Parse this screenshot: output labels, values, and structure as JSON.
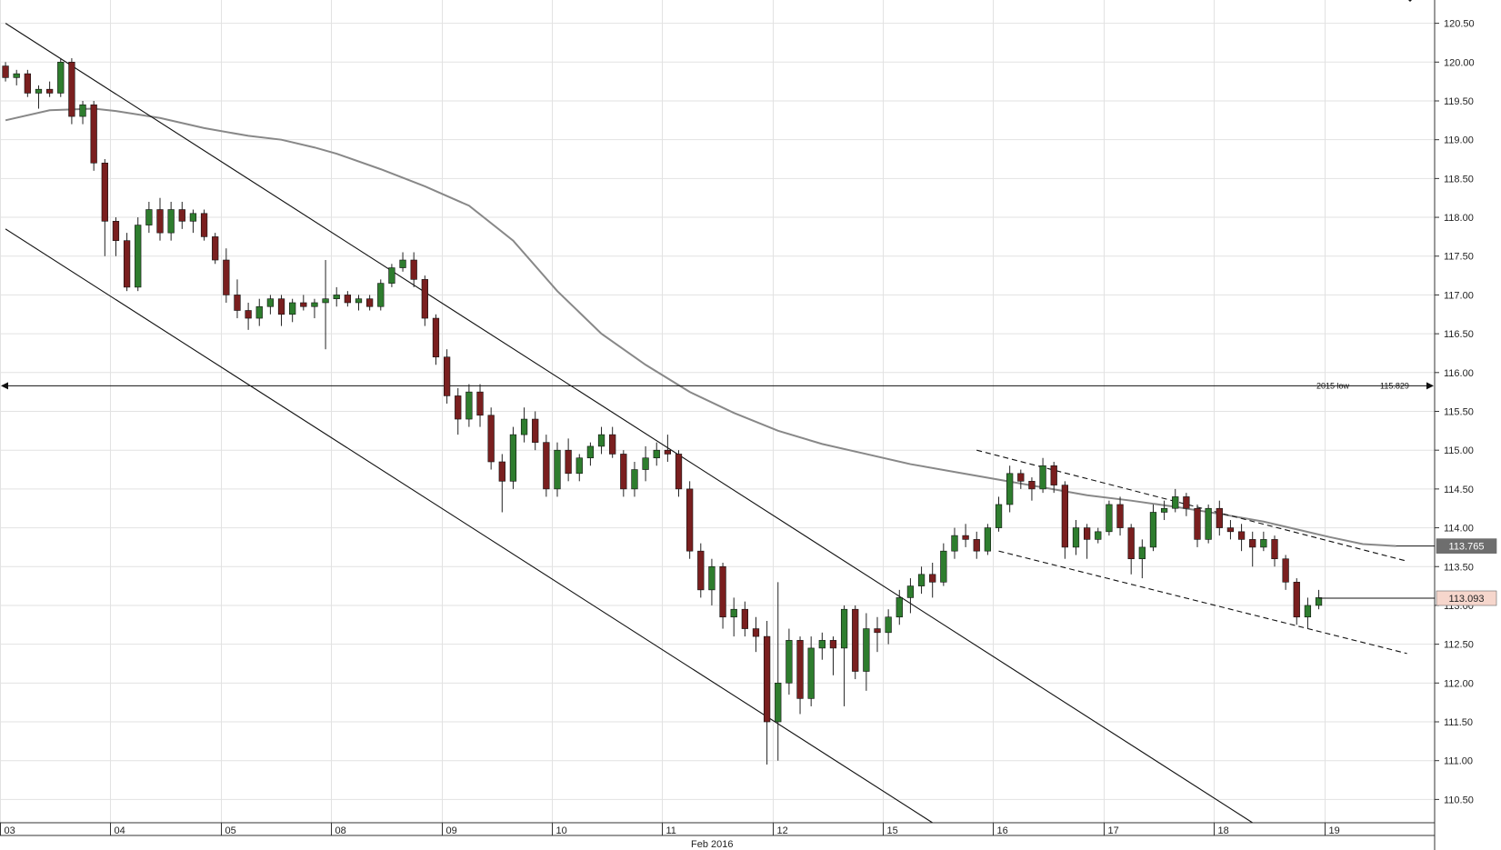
{
  "chart_data": {
    "type": "candlestick",
    "title": "",
    "xlabel": "Feb 2016",
    "ylabel": "",
    "ylim": [
      110.2,
      120.8
    ],
    "y_ticks": [
      "110.50",
      "111.00",
      "111.50",
      "112.00",
      "112.50",
      "113.00",
      "113.50",
      "114.00",
      "114.50",
      "115.00",
      "115.50",
      "116.00",
      "116.50",
      "117.00",
      "117.50",
      "118.00",
      "118.50",
      "119.00",
      "119.50",
      "120.00",
      "120.50"
    ],
    "x_day_labels": [
      "03",
      "04",
      "05",
      "08",
      "09",
      "10",
      "11",
      "12",
      "15",
      "16",
      "17",
      "18",
      "19"
    ],
    "x_month_label": "Feb 2016",
    "grid": true,
    "colors": {
      "up": "#2e7d2e",
      "down": "#7a1f1f",
      "wick": "#222222",
      "ma": "#888888",
      "line": "#111111"
    },
    "moving_average": [
      [
        0,
        119.25
      ],
      [
        4,
        119.38
      ],
      [
        8,
        119.4
      ],
      [
        10,
        119.37
      ],
      [
        14,
        119.28
      ],
      [
        18,
        119.15
      ],
      [
        22,
        119.05
      ],
      [
        25,
        119.0
      ],
      [
        28,
        118.9
      ],
      [
        30,
        118.82
      ],
      [
        34,
        118.62
      ],
      [
        38,
        118.4
      ],
      [
        42,
        118.15
      ],
      [
        46,
        117.7
      ],
      [
        50,
        117.05
      ],
      [
        54,
        116.5
      ],
      [
        58,
        116.1
      ],
      [
        62,
        115.75
      ],
      [
        66,
        115.48
      ],
      [
        70,
        115.25
      ],
      [
        74,
        115.08
      ],
      [
        78,
        114.95
      ],
      [
        82,
        114.82
      ],
      [
        86,
        114.72
      ],
      [
        90,
        114.62
      ],
      [
        94,
        114.52
      ],
      [
        98,
        114.42
      ],
      [
        102,
        114.35
      ],
      [
        106,
        114.27
      ],
      [
        110,
        114.18
      ],
      [
        114,
        114.08
      ],
      [
        117,
        113.98
      ],
      [
        120,
        113.88
      ],
      [
        123,
        113.79
      ],
      [
        126,
        113.765
      ]
    ],
    "level_2015_low": {
      "label": "2015 low",
      "value": "115.829",
      "y": 115.829
    },
    "channel_upper": [
      [
        0,
        120.5
      ],
      [
        113,
        110.2
      ]
    ],
    "channel_lower": [
      [
        0,
        117.85
      ],
      [
        84,
        110.2
      ]
    ],
    "trend_dashed_upper": [
      [
        88,
        115.0
      ],
      [
        127,
        113.57
      ]
    ],
    "trend_dashed_lower": [
      [
        90,
        113.7
      ],
      [
        127,
        112.38
      ]
    ],
    "candles": [
      [
        119.95,
        120.0,
        119.75,
        119.8
      ],
      [
        119.8,
        119.9,
        119.7,
        119.85
      ],
      [
        119.85,
        119.9,
        119.55,
        119.6
      ],
      [
        119.6,
        119.7,
        119.4,
        119.65
      ],
      [
        119.65,
        119.75,
        119.55,
        119.6
      ],
      [
        119.6,
        120.05,
        119.55,
        120.0
      ],
      [
        120.0,
        120.05,
        119.2,
        119.3
      ],
      [
        119.3,
        119.5,
        119.2,
        119.45
      ],
      [
        119.45,
        119.5,
        118.6,
        118.7
      ],
      [
        118.7,
        118.75,
        117.5,
        117.95
      ],
      [
        117.95,
        118.0,
        117.5,
        117.7
      ],
      [
        117.7,
        117.8,
        117.05,
        117.1
      ],
      [
        117.1,
        118.0,
        117.05,
        117.9
      ],
      [
        117.9,
        118.2,
        117.8,
        118.1
      ],
      [
        118.1,
        118.25,
        117.7,
        117.8
      ],
      [
        117.8,
        118.2,
        117.7,
        118.1
      ],
      [
        118.1,
        118.2,
        117.85,
        117.95
      ],
      [
        117.95,
        118.1,
        117.8,
        118.05
      ],
      [
        118.05,
        118.1,
        117.7,
        117.75
      ],
      [
        117.75,
        117.8,
        117.4,
        117.45
      ],
      [
        117.45,
        117.6,
        116.9,
        117.0
      ],
      [
        117.0,
        117.2,
        116.7,
        116.8
      ],
      [
        116.8,
        116.9,
        116.55,
        116.7
      ],
      [
        116.7,
        116.95,
        116.6,
        116.85
      ],
      [
        116.85,
        117.0,
        116.75,
        116.95
      ],
      [
        116.95,
        117.0,
        116.6,
        116.75
      ],
      [
        116.75,
        116.95,
        116.65,
        116.9
      ],
      [
        116.9,
        117.0,
        116.8,
        116.85
      ],
      [
        116.85,
        116.95,
        116.7,
        116.9
      ],
      [
        116.9,
        117.45,
        116.3,
        116.95
      ],
      [
        116.95,
        117.1,
        116.85,
        117.0
      ],
      [
        117.0,
        117.05,
        116.85,
        116.9
      ],
      [
        116.9,
        117.0,
        116.8,
        116.95
      ],
      [
        116.95,
        117.0,
        116.8,
        116.85
      ],
      [
        116.85,
        117.2,
        116.8,
        117.15
      ],
      [
        117.15,
        117.4,
        117.1,
        117.35
      ],
      [
        117.35,
        117.55,
        117.3,
        117.45
      ],
      [
        117.45,
        117.55,
        117.1,
        117.2
      ],
      [
        117.2,
        117.25,
        116.6,
        116.7
      ],
      [
        116.7,
        116.75,
        116.1,
        116.2
      ],
      [
        116.2,
        116.3,
        115.6,
        115.7
      ],
      [
        115.7,
        115.8,
        115.2,
        115.4
      ],
      [
        115.4,
        115.85,
        115.3,
        115.75
      ],
      [
        115.75,
        115.85,
        115.3,
        115.45
      ],
      [
        115.45,
        115.55,
        114.75,
        114.85
      ],
      [
        114.85,
        114.95,
        114.2,
        114.6
      ],
      [
        114.6,
        115.3,
        114.5,
        115.2
      ],
      [
        115.2,
        115.55,
        115.1,
        115.4
      ],
      [
        115.4,
        115.5,
        115.0,
        115.1
      ],
      [
        115.1,
        115.2,
        114.4,
        114.5
      ],
      [
        114.5,
        115.1,
        114.4,
        115.0
      ],
      [
        115.0,
        115.15,
        114.6,
        114.7
      ],
      [
        114.7,
        114.95,
        114.6,
        114.9
      ],
      [
        114.9,
        115.1,
        114.8,
        115.05
      ],
      [
        115.05,
        115.3,
        114.95,
        115.2
      ],
      [
        115.2,
        115.3,
        114.9,
        114.95
      ],
      [
        114.95,
        115.0,
        114.4,
        114.5
      ],
      [
        114.5,
        114.85,
        114.4,
        114.75
      ],
      [
        114.75,
        115.05,
        114.6,
        114.9
      ],
      [
        114.9,
        115.1,
        114.8,
        115.0
      ],
      [
        115.0,
        115.2,
        114.85,
        114.95
      ],
      [
        114.95,
        115.0,
        114.4,
        114.5
      ],
      [
        114.5,
        114.6,
        113.6,
        113.7
      ],
      [
        113.7,
        113.8,
        113.1,
        113.2
      ],
      [
        113.2,
        113.6,
        113.0,
        113.5
      ],
      [
        113.5,
        113.55,
        112.7,
        112.85
      ],
      [
        112.85,
        113.1,
        112.6,
        112.95
      ],
      [
        112.95,
        113.05,
        112.6,
        112.7
      ],
      [
        112.7,
        112.85,
        112.4,
        112.6
      ],
      [
        112.6,
        112.8,
        110.95,
        111.5
      ],
      [
        111.5,
        113.3,
        111.0,
        112.0
      ],
      [
        112.0,
        112.7,
        111.85,
        112.55
      ],
      [
        112.55,
        112.6,
        111.6,
        111.8
      ],
      [
        111.8,
        112.6,
        111.7,
        112.45
      ],
      [
        112.45,
        112.65,
        112.3,
        112.55
      ],
      [
        112.55,
        112.6,
        112.1,
        112.45
      ],
      [
        112.45,
        113.0,
        111.7,
        112.95
      ],
      [
        112.95,
        113.0,
        112.05,
        112.15
      ],
      [
        112.15,
        112.9,
        111.9,
        112.7
      ],
      [
        112.7,
        112.85,
        112.4,
        112.65
      ],
      [
        112.65,
        112.95,
        112.5,
        112.85
      ],
      [
        112.85,
        113.2,
        112.75,
        113.1
      ],
      [
        113.1,
        113.35,
        112.9,
        113.25
      ],
      [
        113.25,
        113.5,
        113.15,
        113.4
      ],
      [
        113.4,
        113.55,
        113.1,
        113.3
      ],
      [
        113.3,
        113.8,
        113.25,
        113.7
      ],
      [
        113.7,
        114.0,
        113.6,
        113.9
      ],
      [
        113.9,
        114.05,
        113.75,
        113.85
      ],
      [
        113.85,
        113.95,
        113.6,
        113.7
      ],
      [
        113.7,
        114.05,
        113.65,
        114.0
      ],
      [
        114.0,
        114.4,
        113.95,
        114.3
      ],
      [
        114.3,
        114.8,
        114.2,
        114.7
      ],
      [
        114.7,
        114.75,
        114.5,
        114.6
      ],
      [
        114.6,
        114.65,
        114.35,
        114.5
      ],
      [
        114.5,
        114.9,
        114.45,
        114.8
      ],
      [
        114.8,
        114.85,
        114.45,
        114.55
      ],
      [
        114.55,
        114.6,
        113.6,
        113.75
      ],
      [
        113.75,
        114.1,
        113.65,
        114.0
      ],
      [
        114.0,
        114.05,
        113.6,
        113.85
      ],
      [
        113.85,
        114.0,
        113.8,
        113.95
      ],
      [
        113.95,
        114.35,
        113.9,
        114.3
      ],
      [
        114.3,
        114.4,
        113.9,
        114.0
      ],
      [
        114.0,
        114.05,
        113.4,
        113.6
      ],
      [
        113.6,
        113.85,
        113.35,
        113.75
      ],
      [
        113.75,
        114.3,
        113.7,
        114.2
      ],
      [
        114.2,
        114.35,
        114.1,
        114.25
      ],
      [
        114.25,
        114.5,
        114.2,
        114.4
      ],
      [
        114.4,
        114.45,
        114.15,
        114.25
      ],
      [
        114.25,
        114.3,
        113.75,
        113.85
      ],
      [
        113.85,
        114.3,
        113.8,
        114.25
      ],
      [
        114.25,
        114.35,
        113.9,
        114.0
      ],
      [
        114.0,
        114.1,
        113.85,
        113.95
      ],
      [
        113.95,
        114.05,
        113.7,
        113.85
      ],
      [
        113.85,
        113.95,
        113.5,
        113.75
      ],
      [
        113.75,
        113.95,
        113.7,
        113.85
      ],
      [
        113.85,
        113.9,
        113.5,
        113.6
      ],
      [
        113.6,
        113.65,
        113.2,
        113.3
      ],
      [
        113.3,
        113.35,
        112.75,
        112.85
      ],
      [
        112.85,
        113.1,
        112.7,
        113.0
      ],
      [
        113.0,
        113.2,
        112.95,
        113.1
      ]
    ]
  },
  "badges": {
    "ma_value": {
      "text": "113.765",
      "bg": "#6e6e6e",
      "fg": "#ffffff",
      "y": 113.765
    },
    "last_price": {
      "text": "113.093",
      "bg": "#f6d6cc",
      "fg": "#222222",
      "y": 113.093
    }
  }
}
